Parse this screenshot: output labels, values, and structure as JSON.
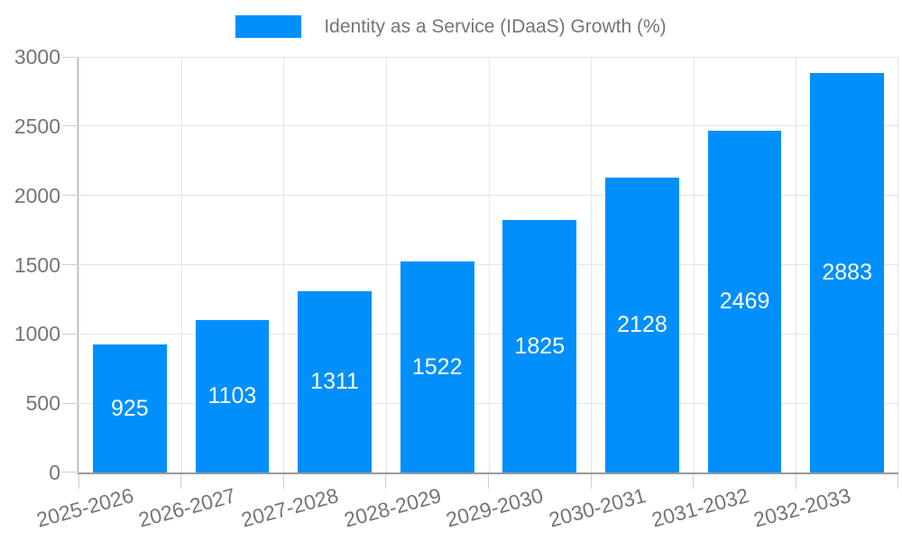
{
  "chart_data": {
    "type": "bar",
    "title": "Identity as a Service (IDaaS) Growth (%)",
    "categories": [
      "2025-2026",
      "2026-2027",
      "2027-2028",
      "2028-2029",
      "2029-2030",
      "2030-2031",
      "2031-2032",
      "2032-2033"
    ],
    "values": [
      925,
      1103,
      1311,
      1522,
      1825,
      2128,
      2469,
      2883
    ],
    "xlabel": "",
    "ylabel": "",
    "ylim": [
      0,
      3000
    ],
    "yticks": [
      0,
      500,
      1000,
      1500,
      2000,
      2500,
      3000
    ],
    "grid": true,
    "legend_position": "top-center",
    "value_labels": "inside-center",
    "x_label_rotation_deg": -15,
    "colors": {
      "bar": "#008FFB",
      "grid": "#e5e5e5",
      "axis": "#9a9a9a",
      "tick": "#cfcfcf",
      "text": "#757575",
      "value_label": "#ffffff",
      "background": "#ffffff"
    }
  }
}
